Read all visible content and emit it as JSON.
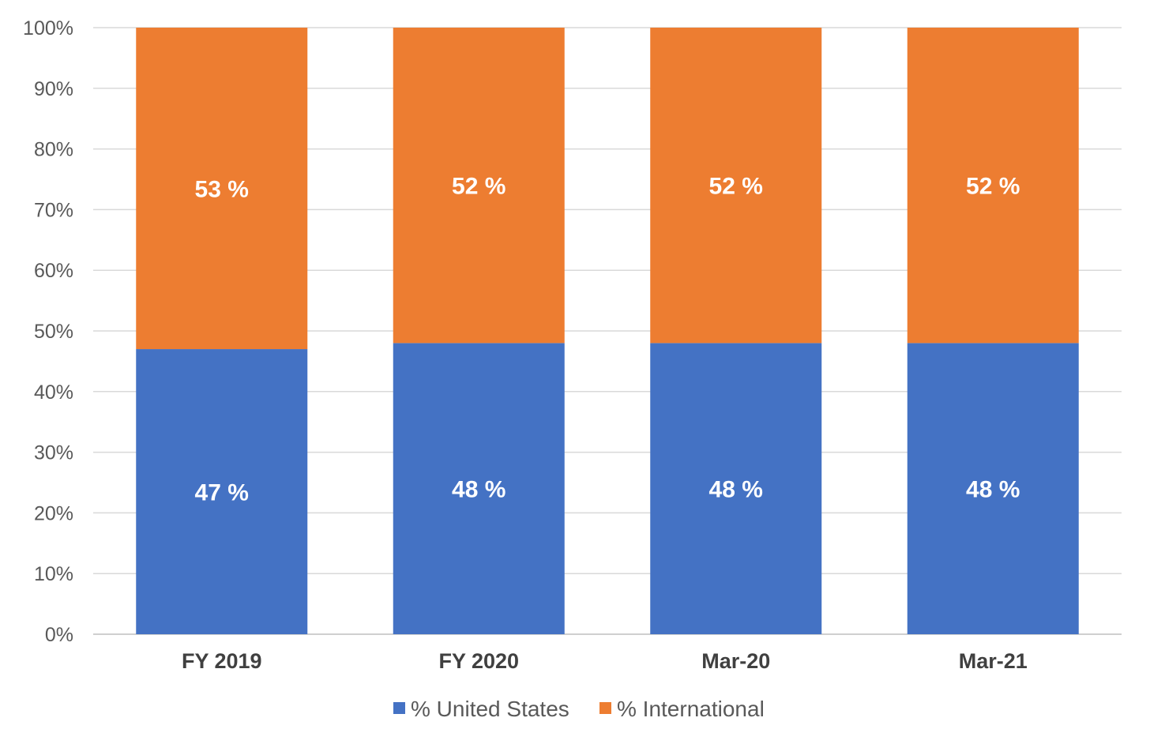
{
  "chart_data": {
    "type": "bar",
    "stacked": true,
    "categories": [
      "FY 2019",
      "FY 2020",
      "Mar-20",
      "Mar-21"
    ],
    "series": [
      {
        "name": "% United States",
        "values": [
          47,
          48,
          48,
          48
        ],
        "labels": [
          "47 %",
          "48 %",
          "48 %",
          "48 %"
        ],
        "color": "#4472c4"
      },
      {
        "name": "% International",
        "values": [
          53,
          52,
          52,
          52
        ],
        "labels": [
          "53 %",
          "52 %",
          "52 %",
          "52 %"
        ],
        "color": "#ed7d31"
      }
    ],
    "ylim": [
      0,
      100
    ],
    "yticks": [
      0,
      10,
      20,
      30,
      40,
      50,
      60,
      70,
      80,
      90,
      100
    ],
    "ytick_labels": [
      "0%",
      "10%",
      "20%",
      "30%",
      "40%",
      "50%",
      "60%",
      "70%",
      "80%",
      "90%",
      "100%"
    ],
    "title": "",
    "xlabel": "",
    "ylabel": "",
    "grid": true,
    "legend_position": "bottom"
  }
}
